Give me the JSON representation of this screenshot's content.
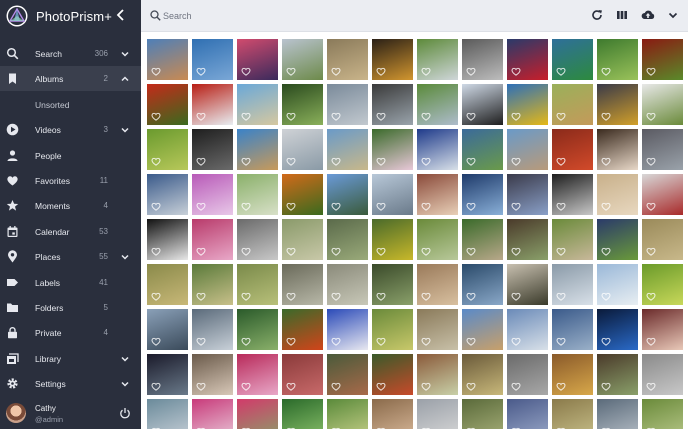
{
  "app": {
    "title": "PhotoPrism+",
    "accent": "#2a2f3d",
    "topbar_bg": "#ebedf2"
  },
  "search": {
    "placeholder": "Search"
  },
  "toolbar": {
    "icons": [
      "refresh-icon",
      "view-columns-icon",
      "upload-icon",
      "chevron-down-icon"
    ]
  },
  "sidebar": {
    "items": [
      {
        "id": "search",
        "label": "Search",
        "count": "306",
        "icon": "search-icon",
        "chevron": "down"
      },
      {
        "id": "albums",
        "label": "Albums",
        "count": "2",
        "icon": "bookmark-icon",
        "chevron": "up",
        "active": true
      },
      {
        "id": "unsorted",
        "label": "Unsorted",
        "count": "",
        "icon": "",
        "chevron": "",
        "sub": true
      },
      {
        "id": "videos",
        "label": "Videos",
        "count": "3",
        "icon": "play-circle-icon",
        "chevron": "down"
      },
      {
        "id": "people",
        "label": "People",
        "count": "",
        "icon": "person-icon",
        "chevron": ""
      },
      {
        "id": "favorites",
        "label": "Favorites",
        "count": "11",
        "icon": "heart-icon",
        "chevron": ""
      },
      {
        "id": "moments",
        "label": "Moments",
        "count": "4",
        "icon": "star-icon",
        "chevron": ""
      },
      {
        "id": "calendar",
        "label": "Calendar",
        "count": "53",
        "icon": "calendar-icon",
        "chevron": ""
      },
      {
        "id": "places",
        "label": "Places",
        "count": "55",
        "icon": "map-pin-icon",
        "chevron": "down"
      },
      {
        "id": "labels",
        "label": "Labels",
        "count": "41",
        "icon": "label-icon",
        "chevron": ""
      },
      {
        "id": "folders",
        "label": "Folders",
        "count": "5",
        "icon": "folder-icon",
        "chevron": ""
      },
      {
        "id": "private",
        "label": "Private",
        "count": "4",
        "icon": "lock-icon",
        "chevron": ""
      },
      {
        "id": "library",
        "label": "Library",
        "count": "",
        "icon": "library-icon",
        "chevron": "down"
      },
      {
        "id": "settings",
        "label": "Settings",
        "count": "",
        "icon": "gear-icon",
        "chevron": "down"
      }
    ]
  },
  "user": {
    "name": "Cathy",
    "handle": "@admin"
  },
  "photos": {
    "rows": [
      [
        [
          "#4e7fb8",
          "#c98a52"
        ],
        [
          "#2f6fb2",
          "#7aa7d6"
        ],
        [
          "#d14b6e",
          "#3a2a5c"
        ],
        [
          "#b9c3cf",
          "#6d8a4a"
        ],
        [
          "#8a7a5a",
          "#c9b48a"
        ],
        [
          "#2a2016",
          "#d2962f"
        ],
        [
          "#5d8a3a",
          "#cfd6d9"
        ],
        [
          "#5a5a5a",
          "#bdbdbd"
        ],
        [
          "#2a3a6a",
          "#c81e2a"
        ],
        [
          "#2e6f9a",
          "#2d8a3e"
        ],
        [
          "#3e7a2e",
          "#9ac25a"
        ],
        [
          "#8a1a12",
          "#5a8a2a"
        ]
      ],
      [
        [
          "#c42a1a",
          "#3a6a1e"
        ],
        [
          "#b81e14",
          "#e8eef2"
        ],
        [
          "#6aa8d8",
          "#d6c8a0"
        ],
        [
          "#2a4a1e",
          "#8ab05a"
        ],
        [
          "#7a8a9a",
          "#c2c9cf"
        ],
        [
          "#3a3a3a",
          "#9aa4ac"
        ],
        [
          "#5a8a3a",
          "#aebccc"
        ],
        [
          "#cfd9e6",
          "#1e1e1e"
        ],
        [
          "#2d6fb8",
          "#e5b817"
        ],
        [
          "#9ab05a",
          "#c49a5a"
        ],
        [
          "#3a3a48",
          "#d2a02a"
        ],
        [
          "#e8e8e8",
          "#6a8a3a"
        ]
      ],
      [
        [
          "#6a9a2e",
          "#b8c85a"
        ],
        [
          "#1e1e1e",
          "#6a6a6a"
        ],
        [
          "#3a82c8",
          "#c89a5a"
        ],
        [
          "#cfd2d6",
          "#8a9aa6"
        ],
        [
          "#6a9ac8",
          "#c8b88a"
        ],
        [
          "#3a6a2a",
          "#e8c8d8"
        ],
        [
          "#1e3a8a",
          "#d8e0e8"
        ],
        [
          "#3a6a9a",
          "#6a9a4a"
        ],
        [
          "#6a9ac8",
          "#b89a7a"
        ],
        [
          "#8a2a1a",
          "#d24a2a"
        ],
        [
          "#3a2a1e",
          "#e8d8c8"
        ],
        [
          "#5a5a62",
          "#9aa2aa"
        ]
      ],
      [
        [
          "#3a5a8a",
          "#c8d0d8"
        ],
        [
          "#b85ab8",
          "#e8c8e8"
        ],
        [
          "#8ab06a",
          "#d8e0c8"
        ],
        [
          "#d26a1a",
          "#3a6a1e"
        ],
        [
          "#6a9ad8",
          "#3a5a3a"
        ],
        [
          "#b8c8d8",
          "#6a7a8a"
        ],
        [
          "#8a4a3a",
          "#e8d0b8"
        ],
        [
          "#1e3a6a",
          "#8ab0d8"
        ],
        [
          "#3a3a4a",
          "#8aa0c8"
        ],
        [
          "#1e1e1e",
          "#c8c8c8"
        ],
        [
          "#c8b08a",
          "#e8d8c0"
        ],
        [
          "#d8d8d8",
          "#a82a2a"
        ]
      ],
      [
        [
          "#111111",
          "#e8e8e8"
        ],
        [
          "#b83a6a",
          "#e8a8c8"
        ],
        [
          "#6a6a6a",
          "#c8c8c8"
        ],
        [
          "#8a9a6a",
          "#c8c8a8"
        ],
        [
          "#5a6a4a",
          "#9aaa7a"
        ],
        [
          "#4a6a2a",
          "#c8b82a"
        ],
        [
          "#6a8a3a",
          "#b8c89a"
        ],
        [
          "#3a6a2a",
          "#b8a88a"
        ],
        [
          "#4a3a2a",
          "#8aa06a"
        ],
        [
          "#6a8a3a",
          "#c8b89a"
        ],
        [
          "#2a3a6a",
          "#6a9a3a"
        ],
        [
          "#9a8a5a",
          "#c8b88a"
        ]
      ],
      [
        [
          "#8a8a4a",
          "#c8b878"
        ],
        [
          "#5a7a3a",
          "#c8c08a"
        ],
        [
          "#7a8a4a",
          "#b8c07a"
        ],
        [
          "#6a6a5a",
          "#b8b8a8"
        ],
        [
          "#8a8a7a",
          "#c8c8b8"
        ],
        [
          "#3a4a2a",
          "#8aa06a"
        ],
        [
          "#9a7a5a",
          "#d8c0a0"
        ],
        [
          "#2a4a6a",
          "#8aa8c8"
        ],
        [
          "#c8c0b0",
          "#3a3a2a"
        ],
        [
          "#8a9aa8",
          "#d8e0e8"
        ],
        [
          "#9ab8d8",
          "#e8eef2"
        ],
        [
          "#6a9a2a",
          "#c8d85a"
        ]
      ],
      [
        [
          "#8aa0b8",
          "#3a4a5a"
        ],
        [
          "#5a6a7a",
          "#c8d0d8"
        ],
        [
          "#2a5a2a",
          "#8ab06a"
        ],
        [
          "#3a6a2a",
          "#d2441a"
        ],
        [
          "#2a4ab8",
          "#e8e8f0"
        ],
        [
          "#6a8a3a",
          "#c8c86a"
        ],
        [
          "#8a7a5a",
          "#c8c0a8"
        ],
        [
          "#5a8ac8",
          "#c8a06a"
        ],
        [
          "#6a8ab8",
          "#d8e0e8"
        ],
        [
          "#3a5a8a",
          "#9ab0c8"
        ],
        [
          "#0a1a3a",
          "#2a6ac8"
        ],
        [
          "#6a2a2a",
          "#e8c8b8"
        ]
      ],
      [
        [
          "#1a1a2a",
          "#6a7a8a"
        ],
        [
          "#6a5a4a",
          "#d8c8b8"
        ],
        [
          "#b82a5a",
          "#e8a8c8"
        ],
        [
          "#8a3a3a",
          "#c86a6a"
        ],
        [
          "#4a5a3a",
          "#a86a4a"
        ],
        [
          "#3a5a2a",
          "#c84a2a"
        ],
        [
          "#8a5a3a",
          "#c8d0a8"
        ],
        [
          "#6a5a3a",
          "#c8b87a"
        ],
        [
          "#6a6a6a",
          "#a8a8a8"
        ],
        [
          "#8a5a2a",
          "#d8a84a"
        ],
        [
          "#4a3a2a",
          "#8aa06a"
        ],
        [
          "#8a8a8a",
          "#c8c8c8"
        ]
      ],
      [
        [
          "#6a8a9a",
          "#c8d0d8"
        ],
        [
          "#c83a7a",
          "#e8c8d8"
        ],
        [
          "#d23a6a",
          "#8aa06a"
        ],
        [
          "#2a6a2a",
          "#8ac06a"
        ],
        [
          "#5a8a3a",
          "#c8d08a"
        ],
        [
          "#8a6a4a",
          "#d8b89a"
        ],
        [
          "#9aa0a8",
          "#d8d8d8"
        ],
        [
          "#5a6a3a",
          "#a8b07a"
        ],
        [
          "#4a5a8a",
          "#9aa8c8"
        ],
        [
          "#8a7a4a",
          "#c8c08a"
        ],
        [
          "#5a6a7a",
          "#b8c0c8"
        ],
        [
          "#6a8a3a",
          "#b8c88a"
        ]
      ]
    ],
    "favorites_shown": true
  }
}
